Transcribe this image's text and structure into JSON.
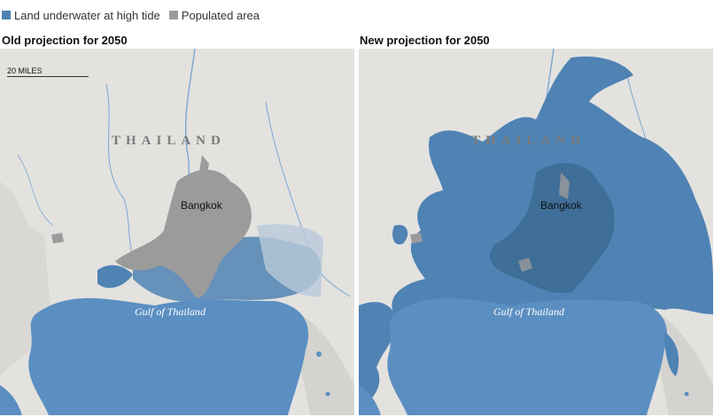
{
  "legend": {
    "items": [
      {
        "label": "Land underwater at high tide",
        "color": "#4f83b4"
      },
      {
        "label": "Populated area",
        "color": "#9b9b9b"
      }
    ]
  },
  "panels": [
    {
      "title": "Old projection for 2050",
      "scale_label": "20 MILES",
      "country_label": "THAILAND",
      "city_label": "Bangkok",
      "gulf_label": "Gulf of Thailand"
    },
    {
      "title": "New projection for 2050",
      "country_label": "THAILAND",
      "city_label": "Bangkok",
      "gulf_label": "Gulf of Thailand"
    }
  ],
  "colors": {
    "land": "#e3e2df",
    "water": "#5b8fc1",
    "flood": "#4f83b4",
    "flood_dark": "#3f6e98",
    "populated": "#9b9b9b",
    "river": "#7aa7d3"
  }
}
